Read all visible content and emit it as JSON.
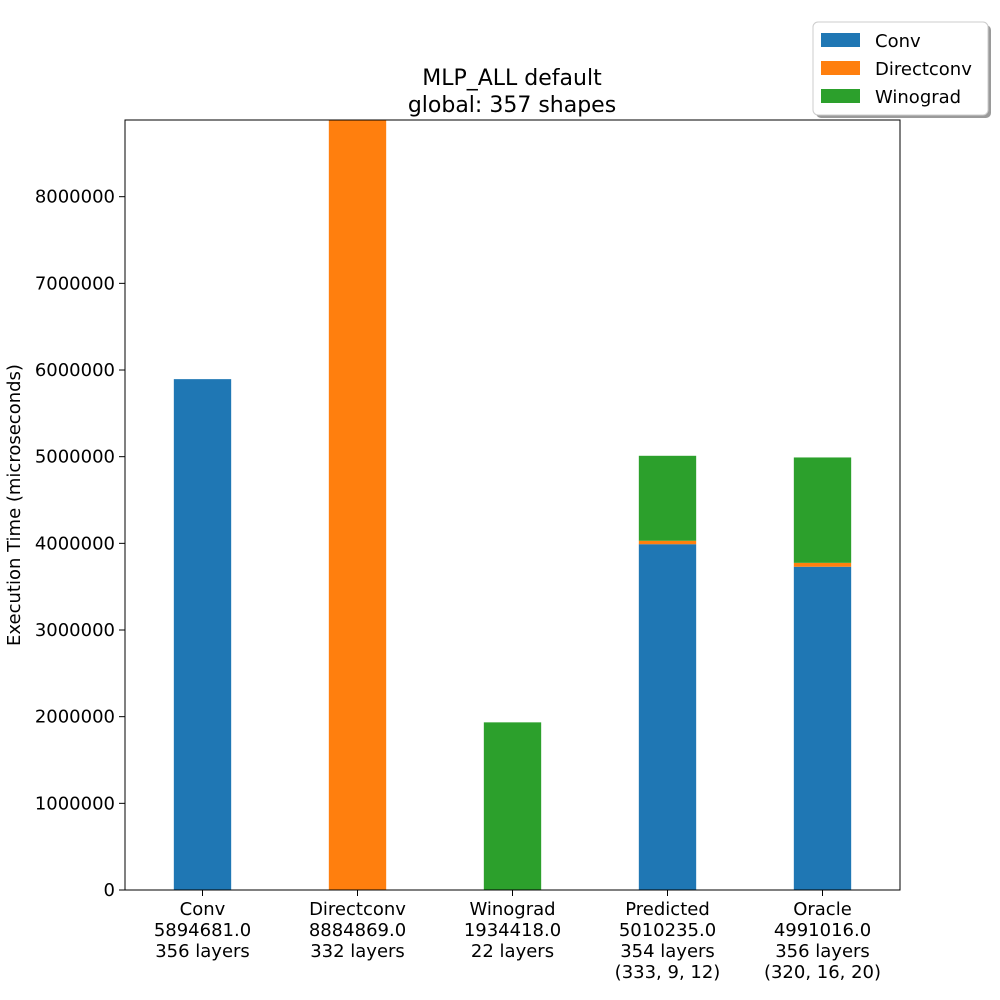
{
  "chart_data": {
    "type": "bar",
    "stacked": true,
    "title": "MLP_ALL default",
    "subtitle": "global: 357 shapes",
    "xlabel": "",
    "ylabel": "Execution Time (microseconds)",
    "ylim": [
      0,
      8884869
    ],
    "yticks": [
      0,
      1000000,
      2000000,
      3000000,
      4000000,
      5000000,
      6000000,
      7000000,
      8000000
    ],
    "ytick_labels": [
      "0",
      "1000000",
      "2000000",
      "3000000",
      "4000000",
      "5000000",
      "6000000",
      "7000000",
      "8000000"
    ],
    "grid": false,
    "legend_position": "top-right",
    "categories": [
      {
        "label": "Conv",
        "total": "5894681.0",
        "layers": "356 layers",
        "split": ""
      },
      {
        "label": "Directconv",
        "total": "8884869.0",
        "layers": "332 layers",
        "split": ""
      },
      {
        "label": "Winograd",
        "total": "1934418.0",
        "layers": "22 layers",
        "split": ""
      },
      {
        "label": "Predicted",
        "total": "5010235.0",
        "layers": "354 layers",
        "split": "(333, 9, 12)"
      },
      {
        "label": "Oracle",
        "total": "4991016.0",
        "layers": "356 layers",
        "split": "(320, 16, 20)"
      }
    ],
    "series": [
      {
        "name": "Conv",
        "color": "#1f77b4",
        "values": [
          5894681,
          0,
          0,
          3990000,
          3730000
        ]
      },
      {
        "name": "Directconv",
        "color": "#ff7f0e",
        "values": [
          0,
          8884869,
          0,
          40000,
          45000
        ]
      },
      {
        "name": "Winograd",
        "color": "#2ca02c",
        "values": [
          0,
          0,
          1934418,
          980235,
          1216016
        ]
      }
    ]
  }
}
